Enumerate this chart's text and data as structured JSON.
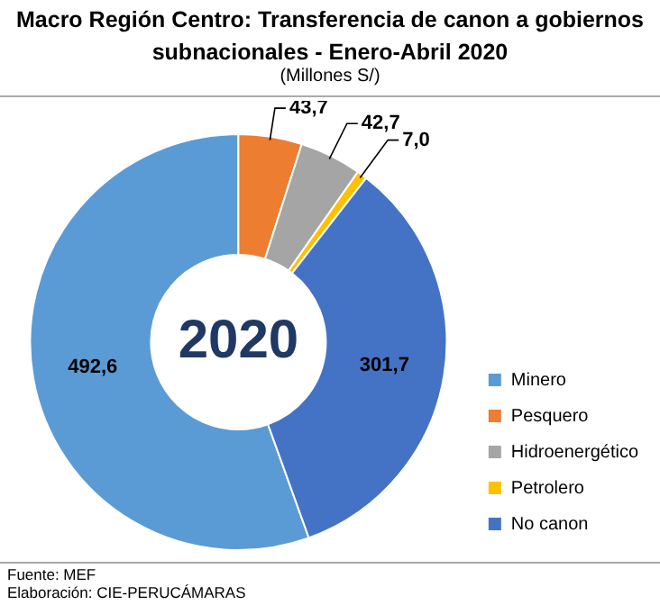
{
  "chart_data": {
    "type": "donut",
    "title": "Macro Región Centro: Transferencia de canon a gobiernos subnacionales - Enero-Abril 2020",
    "subtitle": "(Millones S/)",
    "categories": [
      "Minero",
      "Pesquero",
      "Hidroenergético",
      "Petrolero",
      "No canon"
    ],
    "values": [
      492.6,
      43.7,
      42.7,
      7.0,
      301.7
    ],
    "colors": [
      "#5b9bd5",
      "#ed7d31",
      "#a5a5a5",
      "#ffc000",
      "#4472c4"
    ],
    "value_labels": [
      "492,6",
      "43,7",
      "42,7",
      "7,0",
      "301,7"
    ],
    "legend": "right",
    "annotations": [
      "2020",
      "Fuente: MEF",
      "Elaboración: CIE-PERUCÁMARAS"
    ]
  }
}
